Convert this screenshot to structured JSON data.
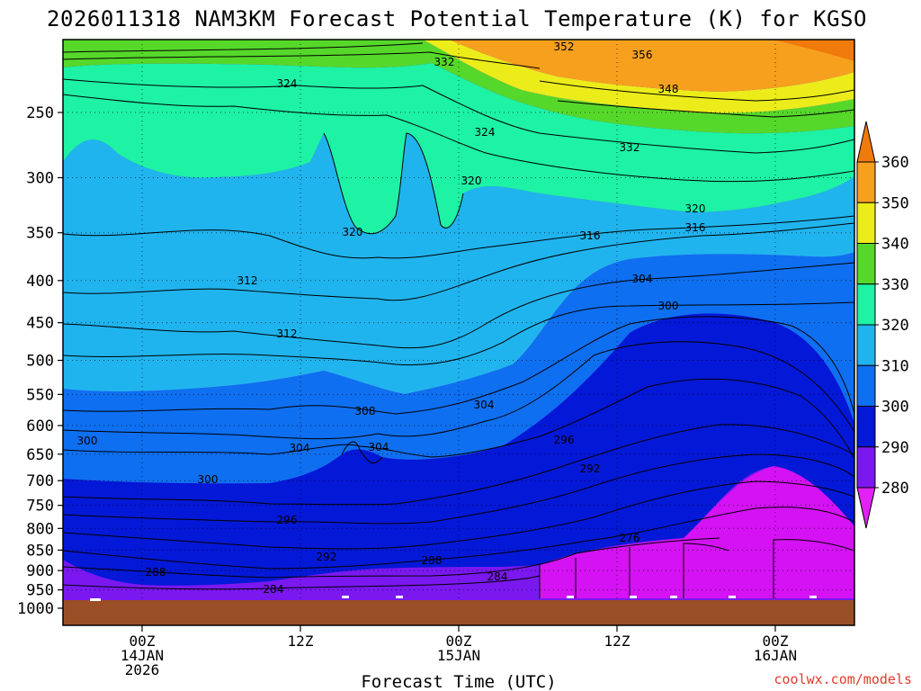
{
  "title": "2026011318 NAM3KM Forecast Potential Temperature (K) for KGSO",
  "credit": "coolwx.com/models",
  "colors": {
    "credit": "#e03a2f",
    "ground": "#9b4f26"
  },
  "chart_data": {
    "type": "heatmap",
    "subtype": "time-height filled contour",
    "title": "2026011318 NAM3KM Forecast Potential Temperature (K) for KGSO",
    "xlabel": "Forecast Time (UTC)",
    "ylabel": "",
    "y_axis": {
      "scale": "log",
      "reversed": true,
      "ylim": [
        1000,
        200
      ],
      "ticks": [
        250,
        300,
        350,
        400,
        450,
        500,
        550,
        600,
        650,
        700,
        750,
        800,
        850,
        900,
        950,
        1000
      ]
    },
    "x_axis": {
      "xlim": [
        "2026-01-13 18Z",
        "2026-01-16 06Z"
      ],
      "ticks": [
        {
          "value": "2026-01-14 00Z",
          "label": [
            "00Z",
            "14JAN",
            "2026"
          ]
        },
        {
          "value": "2026-01-14 12Z",
          "label": [
            "12Z"
          ]
        },
        {
          "value": "2026-01-15 00Z",
          "label": [
            "00Z",
            "15JAN"
          ]
        },
        {
          "value": "2026-01-15 12Z",
          "label": [
            "12Z"
          ]
        },
        {
          "value": "2026-01-16 00Z",
          "label": [
            "00Z",
            "16JAN"
          ]
        }
      ]
    },
    "grid": true,
    "colorbar": {
      "ticks": [
        360,
        350,
        340,
        330,
        320,
        310,
        300,
        290,
        280
      ],
      "bands": [
        {
          "range": [
            350,
            360
          ],
          "color": "#f7a01e"
        },
        {
          "range": [
            340,
            350
          ],
          "color": "#ecec1a"
        },
        {
          "range": [
            330,
            340
          ],
          "color": "#56d82a"
        },
        {
          "range": [
            320,
            330
          ],
          "color": "#1df2a5"
        },
        {
          "range": [
            310,
            320
          ],
          "color": "#20b4ee"
        },
        {
          "range": [
            300,
            310
          ],
          "color": "#0e6ff0"
        },
        {
          "range": [
            290,
            300
          ],
          "color": "#0418d7"
        },
        {
          "range": [
            280,
            290
          ],
          "color": "#7a18ef"
        },
        {
          "range": [
            270,
            280
          ],
          "color": "#d412f3"
        }
      ],
      "over_color": "#f07a0c",
      "under_color": "#e222f5"
    },
    "contour_labels": [
      "352",
      "356",
      "332",
      "348",
      "324",
      "324",
      "332",
      "320",
      "320",
      "320",
      "316",
      "312",
      "316",
      "304",
      "300",
      "312",
      "308",
      "304",
      "304",
      "300",
      "304",
      "300",
      "296",
      "296",
      "292",
      "292",
      "288",
      "276",
      "288",
      "284",
      "284"
    ]
  }
}
